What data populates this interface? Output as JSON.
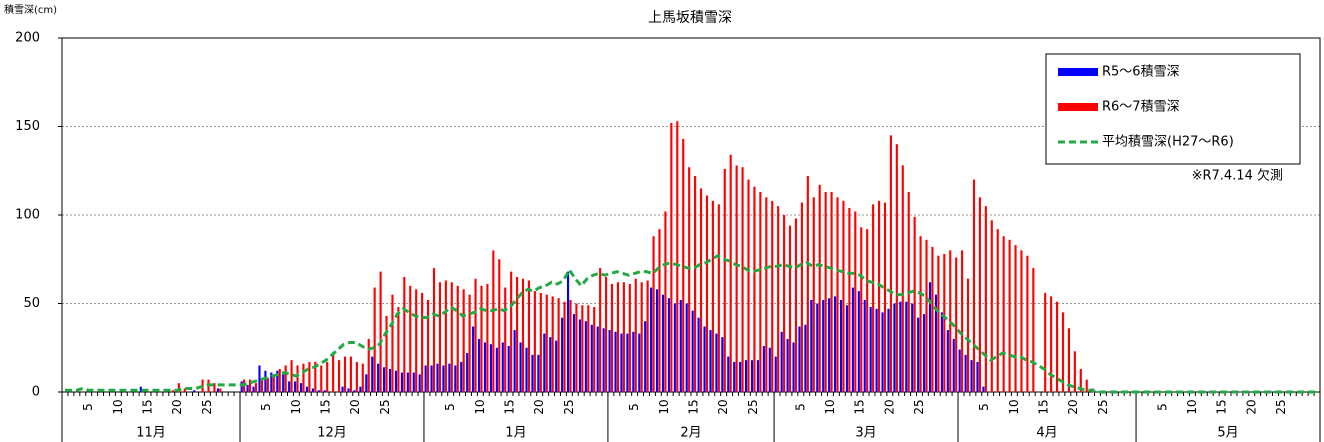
{
  "chart_data": {
    "type": "bar",
    "title": "上馬坂積雪深",
    "y_label": "積雪深(cm)",
    "note": "※R7.4.14 欠測",
    "legend": "upper right",
    "grid": true,
    "ylim": [
      0,
      200
    ],
    "yticks": [
      0,
      50,
      100,
      150,
      200
    ],
    "groups": [
      {
        "label": "11月",
        "categories": [
          null,
          null,
          null,
          null,
          "5",
          null,
          null,
          null,
          null,
          "10",
          null,
          null,
          null,
          null,
          "15",
          null,
          null,
          null,
          null,
          "20",
          null,
          null,
          null,
          null,
          "25",
          null,
          null,
          null,
          null,
          null
        ]
      },
      {
        "label": "12月",
        "categories": [
          null,
          null,
          null,
          null,
          "5",
          null,
          null,
          null,
          null,
          "10",
          null,
          null,
          null,
          null,
          "15",
          null,
          null,
          null,
          null,
          "20",
          null,
          null,
          null,
          null,
          "25",
          null,
          null,
          null,
          null,
          null,
          null
        ]
      },
      {
        "label": "1月",
        "categories": [
          null,
          null,
          null,
          null,
          "5",
          null,
          null,
          null,
          null,
          "10",
          null,
          null,
          null,
          null,
          "15",
          null,
          null,
          null,
          null,
          "20",
          null,
          null,
          null,
          null,
          "25",
          null,
          null,
          null,
          null,
          null,
          null
        ]
      },
      {
        "label": "2月",
        "categories": [
          null,
          null,
          null,
          null,
          "5",
          null,
          null,
          null,
          null,
          "10",
          null,
          null,
          null,
          null,
          "15",
          null,
          null,
          null,
          null,
          "20",
          null,
          null,
          null,
          null,
          "25",
          null,
          null,
          null
        ]
      },
      {
        "label": "3月",
        "categories": [
          null,
          null,
          null,
          null,
          "5",
          null,
          null,
          null,
          null,
          "10",
          null,
          null,
          null,
          null,
          "15",
          null,
          null,
          null,
          null,
          "20",
          null,
          null,
          null,
          null,
          "25",
          null,
          null,
          null,
          null,
          null,
          null
        ]
      },
      {
        "label": "4月",
        "categories": [
          null,
          null,
          null,
          null,
          "5",
          null,
          null,
          null,
          null,
          "10",
          null,
          null,
          null,
          null,
          "15",
          null,
          null,
          null,
          null,
          "20",
          null,
          null,
          null,
          null,
          "25",
          null,
          null,
          null,
          null,
          null
        ]
      },
      {
        "label": "5月",
        "categories": [
          null,
          null,
          null,
          null,
          "5",
          null,
          null,
          null,
          null,
          "10",
          null,
          null,
          null,
          null,
          "15",
          null,
          null,
          null,
          null,
          "20",
          null,
          null,
          null,
          null,
          "25",
          null,
          null,
          null,
          null,
          null,
          null
        ]
      }
    ],
    "series": [
      {
        "name": "R5～6積雪深",
        "type": "bar",
        "color": "#0000ff",
        "values": [
          0,
          0,
          0,
          0,
          0,
          0,
          0,
          0,
          0,
          0,
          0,
          0,
          0,
          3,
          0,
          0,
          0,
          0,
          0,
          0,
          0,
          0,
          1,
          0,
          0,
          0,
          2,
          0,
          0,
          0,
          6,
          4,
          3,
          15,
          12,
          11,
          12,
          10,
          6,
          6,
          5,
          3,
          2,
          1,
          1,
          0,
          0,
          3,
          2,
          1,
          3,
          10,
          20,
          16,
          14,
          13,
          12,
          11,
          11,
          11,
          10,
          15,
          15,
          16,
          15,
          16,
          15,
          17,
          22,
          37,
          30,
          28,
          27,
          25,
          28,
          26,
          35,
          28,
          25,
          21,
          21,
          33,
          31,
          29,
          42,
          68,
          44,
          41,
          40,
          38,
          37,
          36,
          35,
          34,
          33,
          33,
          34,
          33,
          40,
          59,
          58,
          55,
          53,
          50,
          52,
          50,
          46,
          42,
          37,
          35,
          33,
          31,
          20,
          17,
          17,
          18,
          18,
          18,
          26,
          25,
          20,
          34,
          30,
          28,
          37,
          38,
          52,
          50,
          52,
          53,
          54,
          52,
          49,
          59,
          57,
          52,
          48,
          47,
          45,
          47,
          50,
          51,
          51,
          50,
          42,
          44,
          62,
          55,
          45,
          35,
          30,
          24,
          21,
          18,
          17,
          3,
          0,
          0,
          0,
          0,
          0,
          0,
          0,
          0,
          0,
          0,
          0,
          0,
          0,
          0,
          0,
          0,
          0,
          0,
          0,
          0,
          0,
          0,
          0,
          0,
          0,
          0,
          0,
          0,
          0,
          0,
          0,
          0,
          0,
          0,
          0,
          0,
          0,
          0,
          0,
          0,
          0,
          0,
          0,
          0,
          0,
          0,
          0,
          0,
          0,
          0,
          0,
          0,
          0,
          0,
          0,
          0
        ]
      },
      {
        "name": "R6～7積雪深",
        "type": "bar",
        "color": "#ff0000",
        "values": [
          0,
          0,
          0,
          0,
          0,
          0,
          0,
          0,
          0,
          0,
          0,
          0,
          0,
          0,
          0,
          0,
          0,
          0,
          1,
          5,
          2,
          0,
          0,
          7,
          7,
          5,
          2,
          0,
          0,
          0,
          7,
          7,
          5,
          7,
          8,
          10,
          13,
          15,
          18,
          15,
          16,
          17,
          17,
          15,
          17,
          22,
          18,
          20,
          20,
          17,
          16,
          30,
          59,
          68,
          43,
          55,
          48,
          65,
          60,
          58,
          56,
          52,
          70,
          62,
          63,
          62,
          60,
          58,
          55,
          64,
          60,
          61,
          80,
          75,
          59,
          68,
          65,
          64,
          63,
          57,
          56,
          55,
          54,
          53,
          51,
          52,
          50,
          49,
          49,
          48,
          70,
          65,
          61,
          62,
          62,
          61,
          64,
          62,
          63,
          88,
          92,
          102,
          152,
          153,
          143,
          127,
          122,
          115,
          111,
          108,
          106,
          126,
          134,
          128,
          127,
          120,
          116,
          113,
          110,
          108,
          105,
          100,
          94,
          98,
          107,
          122,
          110,
          117,
          113,
          113,
          110,
          108,
          104,
          102,
          93,
          92,
          106,
          108,
          107,
          145,
          140,
          128,
          113,
          99,
          88,
          86,
          82,
          77,
          78,
          80,
          76,
          80,
          64,
          120,
          110,
          105,
          97,
          92,
          88,
          86,
          83,
          80,
          77,
          70,
          null,
          56,
          54,
          51,
          45,
          36,
          23,
          13,
          7,
          2,
          0,
          0,
          0,
          0,
          0,
          0,
          0,
          0,
          0,
          0,
          0,
          0,
          0,
          0,
          0,
          0,
          0,
          0,
          0,
          0,
          0,
          0,
          0,
          0,
          0,
          0,
          0,
          0,
          0,
          0,
          0,
          0,
          0,
          0,
          0,
          0,
          0,
          0
        ]
      },
      {
        "name": "平均積雪深(H27～R6)",
        "type": "line",
        "color": "#22aa44",
        "values": [
          1,
          1,
          1,
          2,
          1,
          1,
          1,
          1,
          1,
          1,
          1,
          1,
          1,
          1,
          1,
          1,
          1,
          1,
          1,
          1,
          2,
          2,
          2,
          3,
          4,
          4,
          4,
          4,
          4,
          4,
          4,
          5,
          6,
          7,
          8,
          9,
          10,
          11,
          10,
          9,
          11,
          13,
          14,
          16,
          18,
          21,
          24,
          27,
          28,
          28,
          26,
          24,
          25,
          27,
          33,
          38,
          44,
          47,
          45,
          43,
          42,
          42,
          44,
          43,
          45,
          48,
          46,
          43,
          44,
          45,
          47,
          46,
          46,
          47,
          46,
          48,
          52,
          56,
          58,
          57,
          59,
          60,
          62,
          61,
          63,
          69,
          64,
          60,
          64,
          66,
          67,
          66,
          67,
          68,
          67,
          66,
          67,
          68,
          68,
          67,
          70,
          72,
          73,
          72,
          71,
          70,
          70,
          72,
          73,
          75,
          77,
          75,
          74,
          72,
          71,
          69,
          68,
          69,
          70,
          71,
          71,
          72,
          71,
          70,
          72,
          73,
          71,
          72,
          71,
          70,
          69,
          68,
          67,
          67,
          66,
          63,
          62,
          61,
          59,
          57,
          55,
          55,
          56,
          57,
          56,
          54,
          50,
          46,
          43,
          40,
          37,
          33,
          30,
          27,
          24,
          21,
          18,
          20,
          22,
          21,
          20,
          20,
          18,
          17,
          15,
          13,
          10,
          8,
          6,
          4,
          3,
          2,
          1,
          1,
          0,
          0,
          0,
          0,
          0,
          0,
          0,
          0,
          0,
          0,
          0,
          0,
          0,
          0,
          0,
          0,
          0,
          0,
          0,
          0,
          0,
          0,
          0,
          0,
          0,
          0,
          0,
          0,
          0,
          0,
          0,
          0,
          0,
          0,
          0,
          0,
          0,
          0
        ]
      }
    ]
  }
}
